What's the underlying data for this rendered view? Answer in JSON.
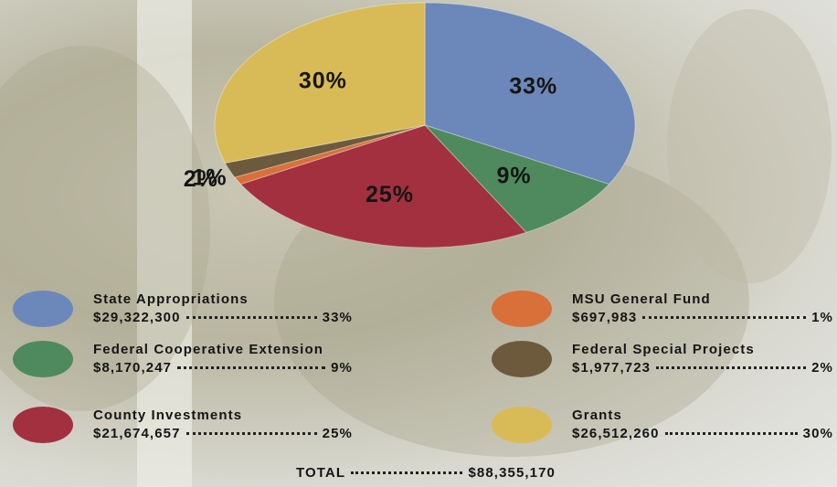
{
  "chart_data": {
    "type": "pie",
    "categories": [
      "State Appropriations",
      "Federal Cooperative Extension",
      "County Investments",
      "MSU General Fund",
      "Federal Special Projects",
      "Grants"
    ],
    "values": [
      33,
      9,
      25,
      1,
      2,
      30
    ],
    "value_labels": [
      "33%",
      "9%",
      "25%",
      "1%",
      "2%",
      "30%"
    ],
    "colors": [
      "#6c87b9",
      "#4e8a5d",
      "#a2303f",
      "#d9703a",
      "#6d5a3d",
      "#d8bb56"
    ],
    "amounts": [
      "$29,322,300",
      "$8,170,247",
      "$21,674,657",
      "$697,983",
      "$1,977,723",
      "$26,512,260"
    ],
    "total_label": "TOTAL",
    "total": "$88,355,170"
  }
}
